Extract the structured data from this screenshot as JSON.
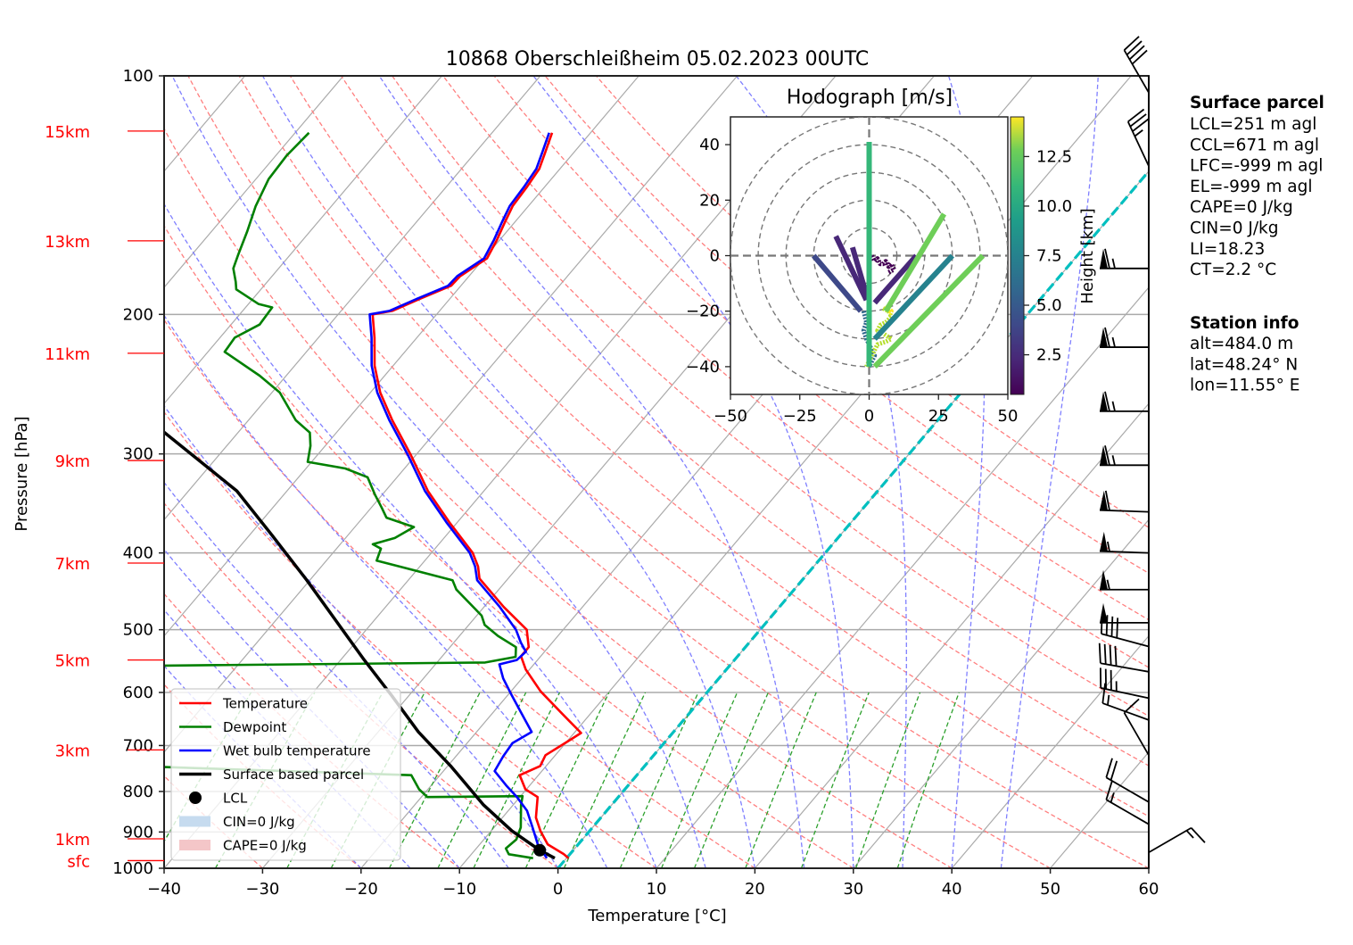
{
  "title": "10868 Oberschleißheim 05.02.2023 00UTC",
  "colors": {
    "temperature": "#ff0000",
    "dewpoint": "#008000",
    "wetbulb": "#0000ff",
    "parcel": "#000000",
    "dry_adiabat": "#ff7f7f",
    "moist_adiabat": "#7f7fff",
    "mixing_ratio": "#2ca02c",
    "zero_isotherm": "#00bfbf",
    "isotherm": "#aaaaaa",
    "height_label": "#ff0000",
    "cin_fill": "#c6dbef",
    "cape_fill": "#f4c6c8"
  },
  "chart_data": [
    {
      "type": "line",
      "subtype": "skew-t log-p",
      "title": "10868 Oberschleißheim 05.02.2023 00UTC",
      "xlabel": "Temperature [°C]",
      "ylabel": "Pressure [hPa]",
      "xlim": [
        -40,
        60
      ],
      "ylim": [
        1000,
        100
      ],
      "yscale": "log",
      "grid": true,
      "x_ticks": [
        "−40",
        "−30",
        "−20",
        "−10",
        "0",
        "10",
        "20",
        "30",
        "40",
        "50",
        "60"
      ],
      "x_tick_values": [
        -40,
        -30,
        -20,
        -10,
        0,
        10,
        20,
        30,
        40,
        50,
        60
      ],
      "y_ticks": [
        "100",
        "200",
        "300",
        "400",
        "500",
        "600",
        "700",
        "800",
        "900",
        "1000"
      ],
      "y_tick_values": [
        100,
        200,
        300,
        400,
        500,
        600,
        700,
        800,
        900,
        1000
      ],
      "height_labels": [
        {
          "label": "15km",
          "p": 117.4
        },
        {
          "label": "13km",
          "p": 161.5
        },
        {
          "label": "11km",
          "p": 223.9
        },
        {
          "label": "9km",
          "p": 305.8
        },
        {
          "label": "7km",
          "p": 412
        },
        {
          "label": "5km",
          "p": 546
        },
        {
          "label": "3km",
          "p": 709
        },
        {
          "label": "1km",
          "p": 918
        },
        {
          "label": "sfc",
          "p": 978
        }
      ],
      "legend": {
        "placement": "lower-left",
        "entries": [
          {
            "label": "Temperature",
            "kind": "line",
            "color": "#ff0000"
          },
          {
            "label": "Dewpoint",
            "kind": "line",
            "color": "#008000"
          },
          {
            "label": "Wet bulb temperature",
            "kind": "line",
            "color": "#0000ff"
          },
          {
            "label": "Surface based parcel",
            "kind": "line",
            "color": "#000000"
          },
          {
            "label": "LCL",
            "kind": "dot",
            "color": "#000000"
          },
          {
            "label": "CIN=0 J/kg",
            "kind": "patch",
            "color": "#c6dbef"
          },
          {
            "label": "CAPE=0 J/kg",
            "kind": "patch",
            "color": "#f4c6c8"
          }
        ]
      },
      "series": [
        {
          "name": "Temperature",
          "p": [
            971,
            960,
            933,
            897,
            863,
            813,
            795,
            763,
            743,
            720,
            699,
            675,
            638,
            598,
            561,
            540,
            526,
            500,
            468,
            431,
            416,
            400,
            366,
            334,
            301,
            272,
            251,
            232,
            214,
            200,
            198,
            191,
            184,
            179,
            170,
            161,
            153,
            146,
            138,
            131,
            125,
            118
          ],
          "t": [
            0.2,
            -0.6,
            -3.1,
            -5.0,
            -6.6,
            -8.2,
            -10.1,
            -11.9,
            -10.6,
            -11.0,
            -10.2,
            -9.3,
            -12.9,
            -17.0,
            -20.4,
            -22.0,
            -22.0,
            -23.7,
            -28.0,
            -32.9,
            -34.1,
            -35.8,
            -40.8,
            -45.7,
            -50.5,
            -55.4,
            -59.0,
            -61.9,
            -64.3,
            -66.5,
            -64.8,
            -63.0,
            -61.0,
            -60.9,
            -59.7,
            -60.3,
            -61.0,
            -61.6,
            -61.8,
            -62.1,
            -62.9,
            -63.9
          ]
        },
        {
          "name": "Dewpoint",
          "p": [
            971,
            960,
            944,
            920,
            888,
            832,
            811,
            813,
            795,
            763,
            745,
            760,
            557,
            550,
            541,
            526,
            509,
            493,
            480,
            445,
            433,
            409,
            395,
            390,
            383,
            371,
            361,
            351,
            338,
            321,
            313,
            307,
            293,
            282,
            272,
            251,
            239,
            223,
            214,
            206,
            196,
            194,
            186,
            182,
            175,
            168,
            157,
            146,
            135,
            126,
            118
          ],
          "t": [
            -3.4,
            -6.2,
            -7.0,
            -6.7,
            -7.3,
            -9.2,
            -9.8,
            -19.4,
            -20.9,
            -22.9,
            -48.9,
            -75.0,
            -70.0,
            -25.1,
            -22.5,
            -23.3,
            -26.1,
            -28.4,
            -29.5,
            -34.3,
            -35.5,
            -44.9,
            -45.5,
            -46.7,
            -45.0,
            -44.0,
            -47.6,
            -48.9,
            -50.7,
            -53.0,
            -56.0,
            -60.4,
            -61.5,
            -62.7,
            -65.2,
            -69.2,
            -72.7,
            -78.3,
            -78.5,
            -77.1,
            -77.3,
            -79.0,
            -82.5,
            -83.2,
            -84.6,
            -85.3,
            -86.4,
            -87.7,
            -88.7,
            -88.9,
            -88.6
          ]
        },
        {
          "name": "Wet bulb temperature",
          "p": [
            971,
            933,
            888,
            846,
            813,
            786,
            754,
            722,
            695,
            673,
            638,
            606,
            576,
            553,
            546,
            533,
            519,
            500,
            468,
            433,
            416,
            400,
            366,
            334,
            301,
            272,
            251,
            232,
            214,
            200,
            198,
            191,
            184,
            179,
            170,
            161,
            153,
            146,
            138,
            131,
            125,
            118
          ],
          "t": [
            -2.0,
            -4.1,
            -6.1,
            -8.1,
            -10.3,
            -12.4,
            -14.8,
            -15.2,
            -15.4,
            -14.4,
            -17.0,
            -19.5,
            -21.9,
            -23.5,
            -22.1,
            -21.9,
            -23.2,
            -24.8,
            -28.4,
            -33.0,
            -34.4,
            -36.1,
            -41.1,
            -46.0,
            -50.8,
            -55.7,
            -59.3,
            -62.2,
            -64.6,
            -66.8,
            -65.1,
            -63.3,
            -61.3,
            -61.2,
            -60.0,
            -60.6,
            -61.3,
            -61.9,
            -62.1,
            -62.4,
            -63.2,
            -64.2
          ]
        },
        {
          "name": "Surface based parcel",
          "p": [
            971,
            949,
            897,
            832,
            743,
            673,
            606,
            546,
            492,
            433,
            380,
            334,
            281
          ],
          "t": [
            -1.2,
            -3.4,
            -7.9,
            -13.0,
            -19.7,
            -25.9,
            -31.7,
            -37.6,
            -43.3,
            -50.3,
            -57.7,
            -65.1,
            -77.7
          ]
        }
      ],
      "lcl": {
        "label": "LCL",
        "p": 949,
        "t": -3.4
      },
      "zero_isotherm_t": 0,
      "wind_barbs": [
        {
          "p": 105,
          "speed_kt": 40,
          "dir_deg": 330
        },
        {
          "p": 130,
          "speed_kt": 35,
          "dir_deg": 335
        },
        {
          "p": 175,
          "speed_kt": 65,
          "dir_deg": 270
        },
        {
          "p": 220,
          "speed_kt": 65,
          "dir_deg": 270
        },
        {
          "p": 265,
          "speed_kt": 65,
          "dir_deg": 270
        },
        {
          "p": 310,
          "speed_kt": 65,
          "dir_deg": 270
        },
        {
          "p": 355,
          "speed_kt": 60,
          "dir_deg": 272
        },
        {
          "p": 400,
          "speed_kt": 55,
          "dir_deg": 272
        },
        {
          "p": 445,
          "speed_kt": 55,
          "dir_deg": 270
        },
        {
          "p": 490,
          "speed_kt": 50,
          "dir_deg": 270
        },
        {
          "p": 525,
          "speed_kt": 40,
          "dir_deg": 285
        },
        {
          "p": 565,
          "speed_kt": 40,
          "dir_deg": 280
        },
        {
          "p": 610,
          "speed_kt": 35,
          "dir_deg": 282
        },
        {
          "p": 650,
          "speed_kt": 15,
          "dir_deg": 290
        },
        {
          "p": 720,
          "speed_kt": 10,
          "dir_deg": 330
        },
        {
          "p": 825,
          "speed_kt": 20,
          "dir_deg": 300
        },
        {
          "p": 880,
          "speed_kt": 15,
          "dir_deg": 300
        },
        {
          "p": 955,
          "speed_kt": 15,
          "dir_deg": 60
        }
      ]
    },
    {
      "type": "line",
      "subtype": "hodograph",
      "title": "Hodograph [m/s]",
      "xlim": [
        -50,
        50
      ],
      "ylim": [
        -50,
        50
      ],
      "x_ticks": [
        "−50",
        "−25",
        "0",
        "25",
        "50"
      ],
      "x_tick_values": [
        -50,
        -25,
        0,
        25,
        50
      ],
      "y_ticks": [
        "40",
        "20",
        "0",
        "−20",
        "−40"
      ],
      "y_tick_values": [
        40,
        20,
        0,
        -20,
        -40
      ],
      "rings_ms": [
        10,
        20,
        30,
        40,
        50
      ],
      "colorbar": {
        "label": "Height [km]",
        "range_km": [
          0.5,
          14.5
        ],
        "ticks": [
          "2.5",
          "5.0",
          "7.5",
          "10.0",
          "12.5"
        ],
        "tick_values": [
          2.5,
          5.0,
          7.5,
          10.0,
          12.5
        ],
        "colormap": "viridis"
      },
      "segments": [
        {
          "u": [
            -12,
            -1
          ],
          "v": [
            7,
            -16
          ],
          "height_km": 2.0
        },
        {
          "u": [
            -6,
            -1
          ],
          "v": [
            3,
            -14
          ],
          "height_km": 1.5
        },
        {
          "u": [
            -20,
            -3
          ],
          "v": [
            0,
            -20
          ],
          "height_km": 3.5
        },
        {
          "u": [
            17,
            2
          ],
          "v": [
            0,
            -17
          ],
          "height_km": 2.8
        },
        {
          "u": [
            30,
            2
          ],
          "v": [
            0,
            -30
          ],
          "height_km": 6.0
        },
        {
          "u": [
            41,
            2
          ],
          "v": [
            0,
            -40
          ],
          "height_km": 11.0
        },
        {
          "u": [
            27,
            6
          ],
          "v": [
            15,
            -20
          ],
          "height_km": 12.0
        },
        {
          "u": [
            0,
            0
          ],
          "v": [
            41,
            -40
          ],
          "height_km": 10.0
        }
      ],
      "traces": [
        {
          "u": [
            1,
            2,
            3,
            4,
            5,
            6,
            7,
            8,
            9,
            7
          ],
          "v": [
            0,
            -2,
            -1,
            -3,
            -3,
            -2,
            -4,
            -3,
            -5,
            -6
          ],
          "height_km": 0.8
        },
        {
          "u": [
            -2,
            -1,
            -2,
            -1,
            0,
            1,
            2,
            1,
            0
          ],
          "v": [
            -20,
            -24,
            -27,
            -30,
            -32,
            -34,
            -36,
            -38,
            -40
          ],
          "height_km": 5.0
        },
        {
          "u": [
            5,
            7,
            8,
            6,
            4,
            3,
            5,
            8,
            6,
            3,
            2,
            1,
            0,
            -1
          ],
          "v": [
            -19,
            -20,
            -22,
            -24,
            -25,
            -27,
            -28,
            -30,
            -31,
            -32,
            -34,
            -36,
            -38,
            -40
          ],
          "height_km": 12.5
        },
        {
          "u": [
            6,
            7,
            8,
            7
          ],
          "v": [
            -18,
            -19,
            -20,
            -21
          ],
          "height_km": 14.2
        }
      ]
    }
  ],
  "info": {
    "surface_parcel": {
      "heading": "Surface parcel",
      "lines": [
        "LCL=251 m agl",
        "CCL=671 m agl",
        "LFC=-999 m agl",
        "EL=-999 m agl",
        "CAPE=0 J/kg",
        "CIN=0 J/kg",
        "LI=18.23",
        "CT=2.2 °C"
      ]
    },
    "station": {
      "heading": "Station info",
      "lines": [
        "alt=484.0 m",
        "lat=48.24° N",
        "lon=11.55° E"
      ]
    }
  }
}
